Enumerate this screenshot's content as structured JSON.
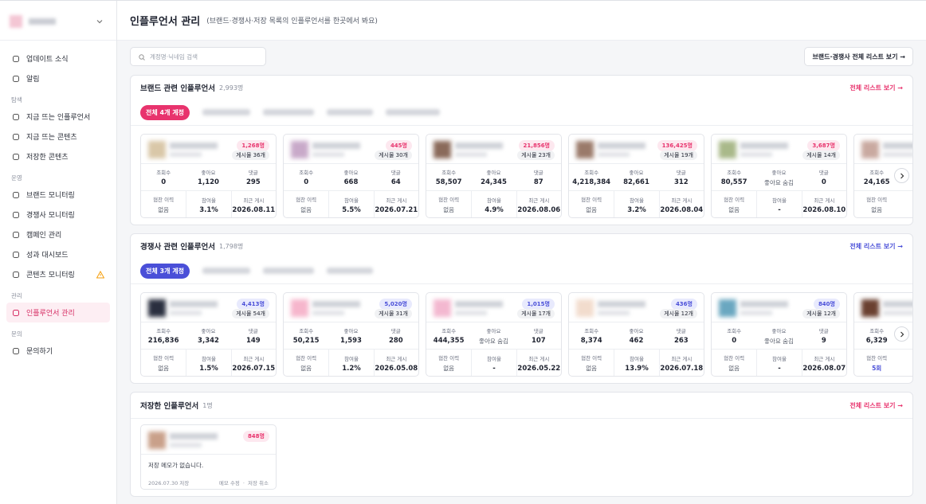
{
  "sidebar": {
    "top_items": [
      {
        "label": "업데이트 소식"
      },
      {
        "label": "알림"
      }
    ],
    "groups": [
      {
        "label": "탐색",
        "items": [
          {
            "label": "지금 뜨는 인플루언서"
          },
          {
            "label": "지금 뜨는 콘텐츠"
          },
          {
            "label": "저장한 콘텐츠"
          }
        ]
      },
      {
        "label": "운영",
        "items": [
          {
            "label": "브랜드 모니터링"
          },
          {
            "label": "경쟁사 모니터링"
          },
          {
            "label": "캠페인 관리"
          },
          {
            "label": "성과 대시보드"
          },
          {
            "label": "콘텐츠 모니터링",
            "warning": true
          }
        ]
      },
      {
        "label": "관리",
        "items": [
          {
            "label": "인플루언서 관리",
            "active": true
          }
        ]
      },
      {
        "label": "문의",
        "items": [
          {
            "label": "문의하기"
          }
        ]
      }
    ]
  },
  "header": {
    "title": "인플루언서 관리",
    "subtitle": "(브랜드·경쟁사·저장 목록의 인플루언서를 한곳에서 봐요)"
  },
  "toolbar": {
    "search_placeholder": "계정명·닉네임 검색",
    "all_list_button": "브랜드·경쟁사 전체 리스트 보기 →"
  },
  "labels": {
    "views": "조회수",
    "likes": "좋아요",
    "comments": "댓글",
    "sponsor": "협찬 이력",
    "engagement": "참여율",
    "last_post": "최근 게시",
    "view_all": "전체 리스트 보기 →"
  },
  "sections": [
    {
      "title": "브랜드 관련 인플루언서",
      "count": "2,993명",
      "chip": "전체 4개 계정",
      "accent": "#e8336d",
      "accent_bg": "#fde8ef",
      "cards": [
        {
          "followers": "1,268명",
          "posts": "게시물 36개",
          "views": "0",
          "likes": "1,120",
          "comments": "295",
          "sponsor": "없음",
          "engagement": "3.1%",
          "last_post": "2026.08.11",
          "avatar": "#d9c7a8"
        },
        {
          "followers": "445명",
          "posts": "게시물 30개",
          "views": "0",
          "likes": "668",
          "comments": "64",
          "sponsor": "없음",
          "engagement": "5.5%",
          "last_post": "2026.07.21",
          "avatar": "#c8a9c9"
        },
        {
          "followers": "21,856명",
          "posts": "게시물 23개",
          "views": "58,507",
          "likes": "24,345",
          "comments": "87",
          "sponsor": "없음",
          "engagement": "4.9%",
          "last_post": "2026.08.06",
          "avatar": "#8a6a5a"
        },
        {
          "followers": "136,425명",
          "posts": "게시물 19개",
          "views": "4,218,384",
          "likes": "82,661",
          "comments": "312",
          "sponsor": "없음",
          "engagement": "3.2%",
          "last_post": "2026.08.04",
          "avatar": "#9a7a6a"
        },
        {
          "followers": "3,687명",
          "posts": "게시물 14개",
          "views": "80,557",
          "likes": "좋아요 숨김",
          "comments": "0",
          "sponsor": "없음",
          "engagement": "-",
          "last_post": "2026.08.10",
          "avatar": "#a9b98a"
        },
        {
          "views": "24,165",
          "sponsor": "없음",
          "avatar": "#c9a9a0"
        }
      ]
    },
    {
      "title": "경쟁사 관련 인플루언서",
      "count": "1,798명",
      "chip": "전체 3개 계정",
      "accent": "#4a4fd8",
      "accent_bg": "#e8eafd",
      "cards": [
        {
          "followers": "4,413명",
          "posts": "게시물 54개",
          "views": "216,836",
          "likes": "3,342",
          "comments": "149",
          "sponsor": "없음",
          "engagement": "1.5%",
          "last_post": "2026.07.15",
          "avatar": "#2a2f3f"
        },
        {
          "followers": "5,020명",
          "posts": "게시물 31개",
          "views": "50,215",
          "likes": "1,593",
          "comments": "280",
          "sponsor": "없음",
          "engagement": "1.2%",
          "last_post": "2026.05.08",
          "avatar": "#f6b6cc"
        },
        {
          "followers": "1,015명",
          "posts": "게시물 17개",
          "views": "444,355",
          "likes": "좋아요 숨김",
          "comments": "107",
          "sponsor": "없음",
          "engagement": "-",
          "last_post": "2026.05.22",
          "avatar": "#f3b8d0"
        },
        {
          "followers": "436명",
          "posts": "게시물 12개",
          "views": "8,374",
          "likes": "462",
          "comments": "263",
          "sponsor": "없음",
          "engagement": "13.9%",
          "last_post": "2026.07.18",
          "avatar": "#f2dccd"
        },
        {
          "followers": "840명",
          "posts": "게시물 12개",
          "views": "0",
          "likes": "좋아요 숨김",
          "comments": "9",
          "sponsor": "없음",
          "engagement": "-",
          "last_post": "2026.08.07",
          "avatar": "#6aa7c0"
        },
        {
          "views": "6,329",
          "sponsor": "5회",
          "avatar": "#6a4030"
        }
      ]
    }
  ],
  "saved": {
    "title": "저장한 인플루언서",
    "count": "1명",
    "card": {
      "followers": "848명",
      "memo": "저장 메모가 없습니다.",
      "saved_date": "2026.07.30 저장",
      "edit": "메모 수정",
      "remove": "저장 취소",
      "avatar": "#c9a08a"
    }
  }
}
